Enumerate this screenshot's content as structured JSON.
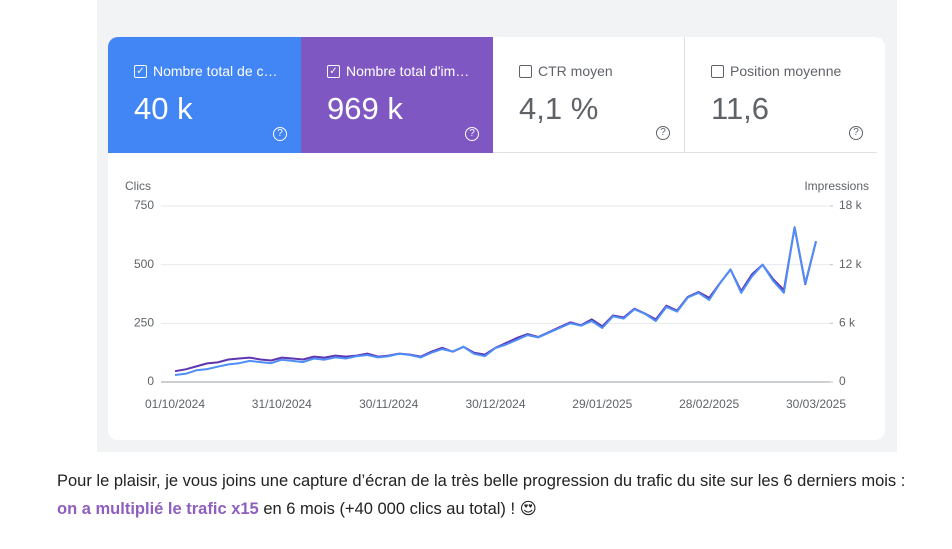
{
  "metrics": [
    {
      "label": "Nombre total de c…",
      "value": "40 k",
      "checked": true,
      "color": "#4285f4"
    },
    {
      "label": "Nombre total d'im…",
      "value": "969 k",
      "checked": true,
      "color": "#7e57c2"
    },
    {
      "label": "CTR moyen",
      "value": "4,1 %",
      "checked": false
    },
    {
      "label": "Position moyenne",
      "value": "11,6",
      "checked": false
    }
  ],
  "chart_data": {
    "type": "line",
    "y_label": "Clics",
    "y2_label": "Impressions",
    "x": [
      "01/10/2024",
      "04/10/2024",
      "07/10/2024",
      "10/10/2024",
      "13/10/2024",
      "16/10/2024",
      "19/10/2024",
      "22/10/2024",
      "25/10/2024",
      "28/10/2024",
      "31/10/2024",
      "03/11/2024",
      "06/11/2024",
      "09/11/2024",
      "12/11/2024",
      "15/11/2024",
      "18/11/2024",
      "21/11/2024",
      "24/11/2024",
      "27/11/2024",
      "30/11/2024",
      "03/12/2024",
      "06/12/2024",
      "09/12/2024",
      "12/12/2024",
      "15/12/2024",
      "18/12/2024",
      "21/12/2024",
      "24/12/2024",
      "27/12/2024",
      "30/12/2024",
      "02/01/2025",
      "05/01/2025",
      "08/01/2025",
      "11/01/2025",
      "14/01/2025",
      "17/01/2025",
      "20/01/2025",
      "23/01/2025",
      "26/01/2025",
      "29/01/2025",
      "01/02/2025",
      "04/02/2025",
      "07/02/2025",
      "10/02/2025",
      "13/02/2025",
      "16/02/2025",
      "19/02/2025",
      "22/02/2025",
      "25/02/2025",
      "28/02/2025",
      "03/03/2025",
      "06/03/2025",
      "09/03/2025",
      "12/03/2025",
      "15/03/2025",
      "18/03/2025",
      "21/03/2025",
      "24/03/2025",
      "27/03/2025",
      "30/03/2025"
    ],
    "xticks": [
      "01/10/2024",
      "31/10/2024",
      "30/11/2024",
      "30/12/2024",
      "29/01/2025",
      "28/02/2025",
      "30/03/2025"
    ],
    "ylim": [
      0,
      750
    ],
    "yticks": [
      0,
      250,
      500,
      750
    ],
    "y2lim": [
      0,
      18000
    ],
    "y2ticks": [
      0,
      {
        "value": 6000,
        "label": "6 k"
      },
      {
        "value": 12000,
        "label": "12 k"
      },
      {
        "value": 18000,
        "label": "18 k"
      }
    ],
    "grid": true,
    "series": [
      {
        "name": "Impressions",
        "axis": "y2",
        "color": "#5e35b1",
        "values": [
          1100,
          1300,
          1600,
          1900,
          2000,
          2300,
          2400,
          2500,
          2300,
          2200,
          2500,
          2400,
          2300,
          2600,
          2500,
          2700,
          2600,
          2700,
          2900,
          2600,
          2700,
          2900,
          2800,
          2600,
          3100,
          3500,
          3100,
          3600,
          3000,
          2800,
          3500,
          4000,
          4500,
          4900,
          4600,
          5100,
          5600,
          6100,
          5800,
          6400,
          5700,
          6800,
          6600,
          7500,
          7000,
          6400,
          7800,
          7300,
          8700,
          9200,
          8600,
          10100,
          11500,
          9300,
          11000,
          12000,
          10500,
          9400,
          15800,
          10000,
          14400
        ]
      },
      {
        "name": "Clics",
        "color": "#4f8ef7",
        "values": [
          30,
          35,
          50,
          55,
          65,
          75,
          80,
          90,
          85,
          80,
          95,
          90,
          85,
          100,
          95,
          105,
          100,
          110,
          115,
          105,
          110,
          120,
          115,
          105,
          125,
          140,
          130,
          150,
          120,
          110,
          145,
          160,
          180,
          200,
          190,
          210,
          230,
          250,
          240,
          260,
          230,
          280,
          270,
          310,
          290,
          260,
          320,
          300,
          360,
          380,
          350,
          420,
          480,
          380,
          450,
          500,
          430,
          380,
          660,
          420,
          600
        ]
      }
    ]
  },
  "caption": {
    "before": "Pour le plaisir, je vous joins une capture d’écran de la très belle progression du trafic du site sur les 6 derniers mois : ",
    "link": "on a multiplié le trafic x15",
    "after": " en 6 mois (+40 000 clics au total) ! 😍"
  }
}
